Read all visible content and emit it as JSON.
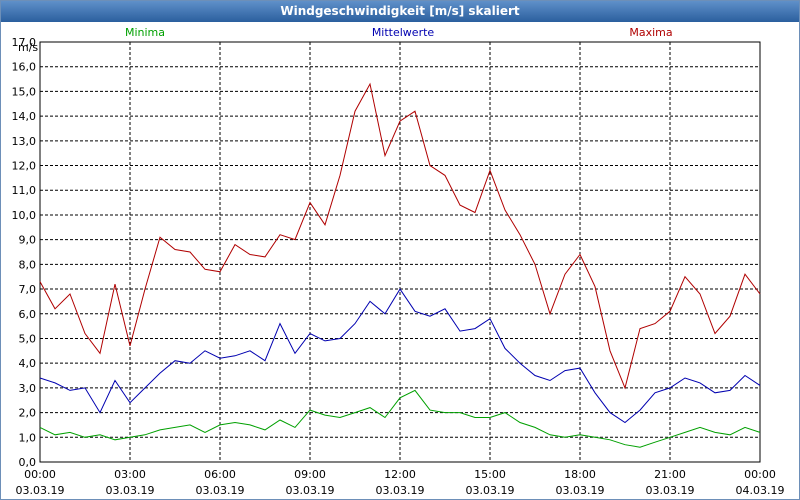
{
  "window": {
    "title": "Windgeschwindigkeit [m/s] skaliert"
  },
  "chart_data": {
    "type": "line",
    "title": "Windgeschwindigkeit [m/s] skaliert",
    "ylabel": "m/s",
    "xlabel": "",
    "ylim": [
      0,
      17
    ],
    "xlim_hours": [
      0,
      24
    ],
    "grid": true,
    "legend_position": "top",
    "y_ticks": [
      "0,0",
      "1,0",
      "2,0",
      "3,0",
      "4,0",
      "5,0",
      "6,0",
      "7,0",
      "8,0",
      "9,0",
      "10,0",
      "11,0",
      "12,0",
      "13,0",
      "14,0",
      "15,0",
      "16,0",
      "17,0"
    ],
    "x_ticks": [
      {
        "time": "00:00",
        "date": "03.03.19"
      },
      {
        "time": "03:00",
        "date": "03.03.19"
      },
      {
        "time": "06:00",
        "date": "03.03.19"
      },
      {
        "time": "09:00",
        "date": "03.03.19"
      },
      {
        "time": "12:00",
        "date": "03.03.19"
      },
      {
        "time": "15:00",
        "date": "03.03.19"
      },
      {
        "time": "18:00",
        "date": "03.03.19"
      },
      {
        "time": "21:00",
        "date": "03.03.19"
      },
      {
        "time": "00:00",
        "date": "04.03.19"
      }
    ],
    "x_hours": [
      0,
      0.5,
      1,
      1.5,
      2,
      2.5,
      3,
      3.5,
      4,
      4.5,
      5,
      5.5,
      6,
      6.5,
      7,
      7.5,
      8,
      8.5,
      9,
      9.5,
      10,
      10.5,
      11,
      11.5,
      12,
      12.5,
      13,
      13.5,
      14,
      14.5,
      15,
      15.5,
      16,
      16.5,
      17,
      17.5,
      18,
      18.5,
      19,
      19.5,
      20,
      20.5,
      21,
      21.5,
      22,
      22.5,
      23,
      23.5,
      24
    ],
    "series": [
      {
        "name": "Minima",
        "color": "#00a000",
        "values": [
          1.4,
          1.1,
          1.2,
          1.0,
          1.1,
          0.9,
          1.0,
          1.1,
          1.3,
          1.4,
          1.5,
          1.2,
          1.5,
          1.6,
          1.5,
          1.3,
          1.7,
          1.4,
          2.1,
          1.9,
          1.8,
          2.0,
          2.2,
          1.8,
          2.6,
          2.9,
          2.1,
          2.0,
          2.0,
          1.8,
          1.8,
          2.0,
          1.6,
          1.4,
          1.1,
          1.0,
          1.1,
          1.0,
          0.9,
          0.7,
          0.6,
          0.8,
          1.0,
          1.2,
          1.4,
          1.2,
          1.1,
          1.4,
          1.2
        ]
      },
      {
        "name": "Mittelwerte",
        "color": "#0000b0",
        "values": [
          3.4,
          3.2,
          2.9,
          3.0,
          2.0,
          3.3,
          2.4,
          3.0,
          3.6,
          4.1,
          4.0,
          4.5,
          4.2,
          4.3,
          4.5,
          4.1,
          5.6,
          4.4,
          5.2,
          4.9,
          5.0,
          5.6,
          6.5,
          6.0,
          7.0,
          6.1,
          5.9,
          6.2,
          5.3,
          5.4,
          5.8,
          4.6,
          4.0,
          3.5,
          3.3,
          3.7,
          3.8,
          2.8,
          2.0,
          1.6,
          2.1,
          2.8,
          3.0,
          3.4,
          3.2,
          2.8,
          2.9,
          3.5,
          3.1
        ]
      },
      {
        "name": "Maxima",
        "color": "#b00000",
        "values": [
          7.3,
          6.2,
          6.8,
          5.2,
          4.4,
          7.2,
          4.7,
          7.0,
          9.1,
          8.6,
          8.5,
          7.8,
          7.7,
          8.8,
          8.4,
          8.3,
          9.2,
          9.0,
          10.5,
          9.6,
          11.6,
          14.2,
          15.3,
          12.4,
          13.8,
          14.2,
          12.0,
          11.6,
          10.4,
          10.1,
          11.8,
          10.2,
          9.2,
          8.0,
          6.0,
          7.6,
          8.4,
          7.1,
          4.5,
          3.0,
          5.4,
          5.6,
          6.1,
          7.5,
          6.8,
          5.2,
          5.9,
          7.6,
          6.8
        ]
      }
    ]
  }
}
